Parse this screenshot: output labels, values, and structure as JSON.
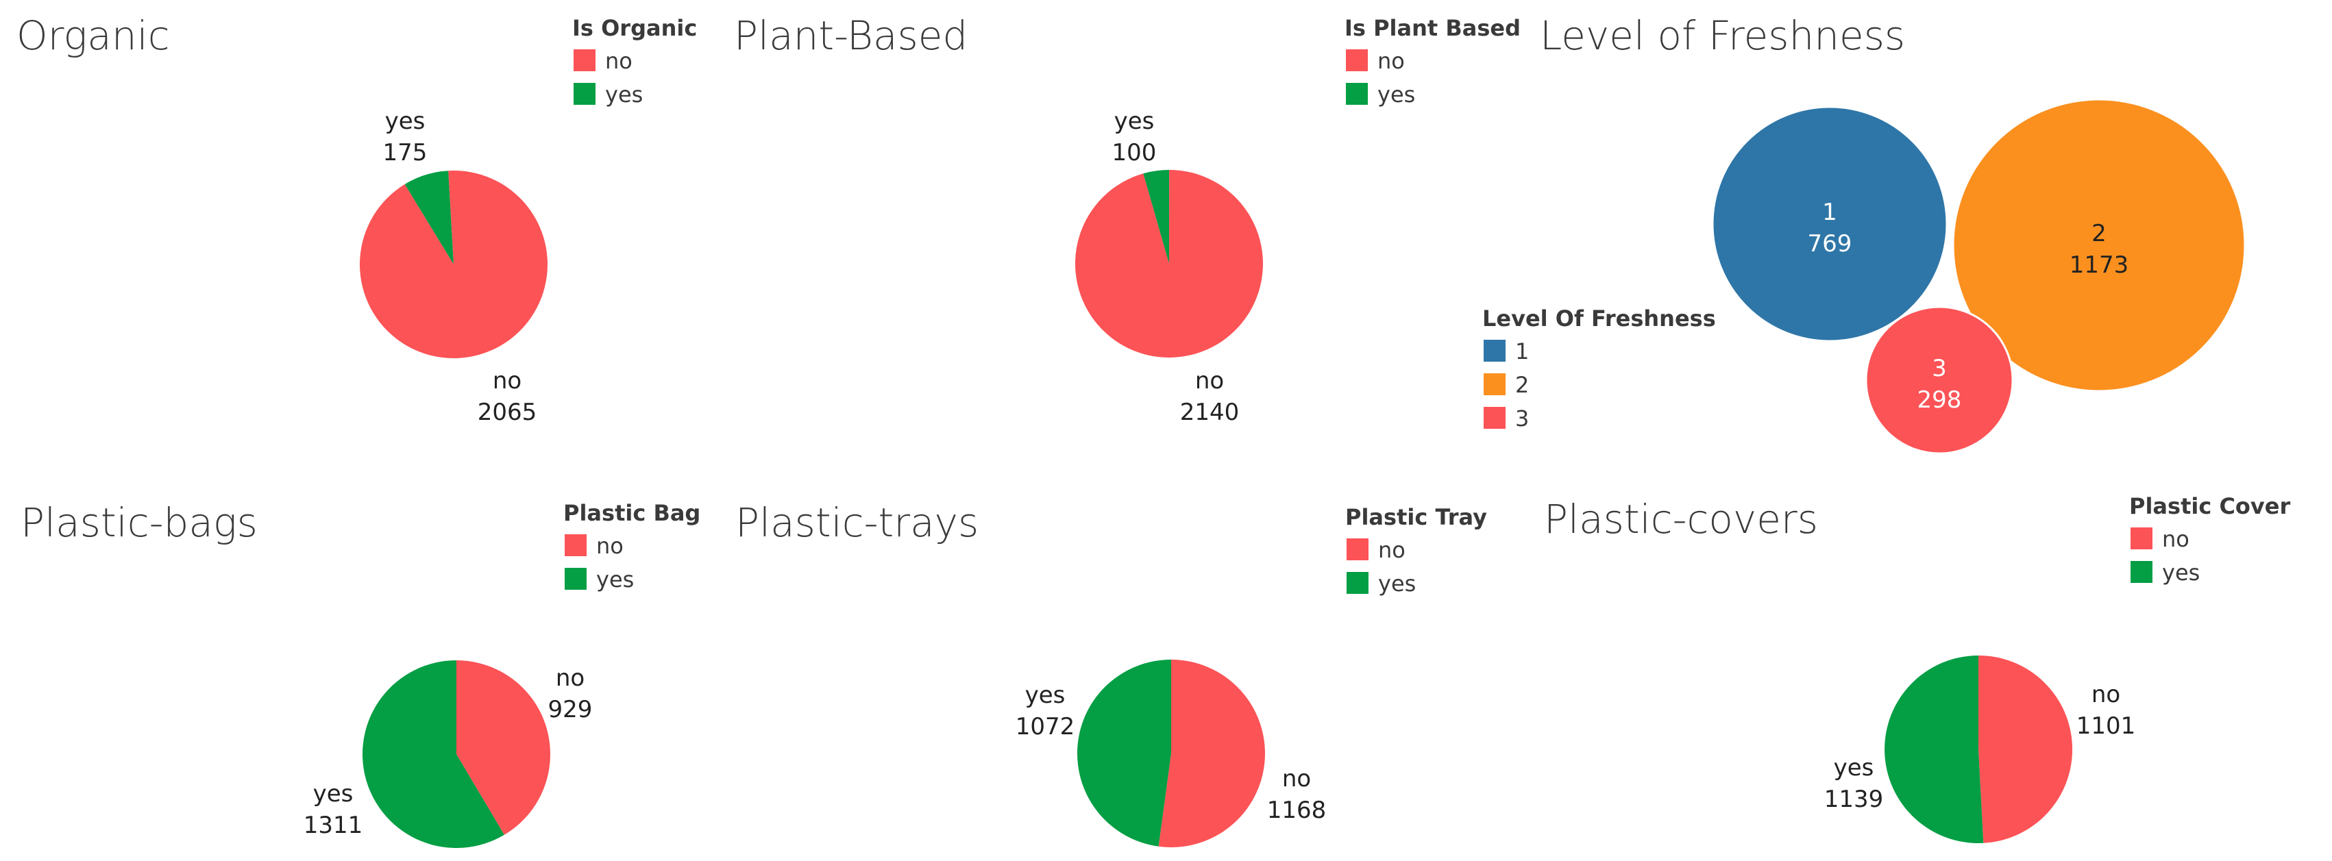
{
  "colors": {
    "no": "#fc5356",
    "yes": "#049e44",
    "fresh_1": "#2e76a7",
    "fresh_2": "#fb901f",
    "fresh_3": "#fc5356"
  },
  "chart_data": [
    {
      "id": "organic",
      "type": "pie",
      "title": "Organic",
      "legend_title": "Is Organic",
      "legend": [
        {
          "label": "no",
          "color": "#fc5356"
        },
        {
          "label": "yes",
          "color": "#049e44"
        }
      ],
      "slices": [
        {
          "label": "yes",
          "value": 175,
          "color": "#049e44"
        },
        {
          "label": "no",
          "value": 2065,
          "color": "#fc5356"
        }
      ]
    },
    {
      "id": "plant-based",
      "type": "pie",
      "title": "Plant-Based",
      "legend_title": "Is Plant Based",
      "legend": [
        {
          "label": "no",
          "color": "#fc5356"
        },
        {
          "label": "yes",
          "color": "#049e44"
        }
      ],
      "slices": [
        {
          "label": "yes",
          "value": 100,
          "color": "#049e44"
        },
        {
          "label": "no",
          "value": 2140,
          "color": "#fc5356"
        }
      ]
    },
    {
      "id": "level-of-freshness",
      "type": "bubble",
      "title": "Level of Freshness",
      "legend_title": "Level Of Freshness",
      "legend": [
        {
          "label": "1",
          "color": "#2e76a7"
        },
        {
          "label": "2",
          "color": "#fb901f"
        },
        {
          "label": "3",
          "color": "#fc5356"
        }
      ],
      "bubbles": [
        {
          "label": "1",
          "value": 769,
          "color": "#2e76a7",
          "text_color": "#ffffff"
        },
        {
          "label": "2",
          "value": 1173,
          "color": "#fb901f",
          "text_color": "#222222"
        },
        {
          "label": "3",
          "value": 298,
          "color": "#fc5356",
          "text_color": "#ffffff"
        }
      ]
    },
    {
      "id": "plastic-bags",
      "type": "pie",
      "title": "Plastic-bags",
      "legend_title": "Plastic Bag",
      "legend": [
        {
          "label": "no",
          "color": "#fc5356"
        },
        {
          "label": "yes",
          "color": "#049e44"
        }
      ],
      "slices": [
        {
          "label": "no",
          "value": 929,
          "color": "#fc5356"
        },
        {
          "label": "yes",
          "value": 1311,
          "color": "#049e44"
        }
      ]
    },
    {
      "id": "plastic-trays",
      "type": "pie",
      "title": "Plastic-trays",
      "legend_title": "Plastic Tray",
      "legend": [
        {
          "label": "no",
          "color": "#fc5356"
        },
        {
          "label": "yes",
          "color": "#049e44"
        }
      ],
      "slices": [
        {
          "label": "no",
          "value": 1168,
          "color": "#fc5356"
        },
        {
          "label": "yes",
          "value": 1072,
          "color": "#049e44"
        }
      ]
    },
    {
      "id": "plastic-covers",
      "type": "pie",
      "title": "Plastic-covers",
      "legend_title": "Plastic Cover",
      "legend": [
        {
          "label": "no",
          "color": "#fc5356"
        },
        {
          "label": "yes",
          "color": "#049e44"
        }
      ],
      "slices": [
        {
          "label": "no",
          "value": 1101,
          "color": "#fc5356"
        },
        {
          "label": "yes",
          "value": 1139,
          "color": "#049e44"
        }
      ]
    }
  ]
}
